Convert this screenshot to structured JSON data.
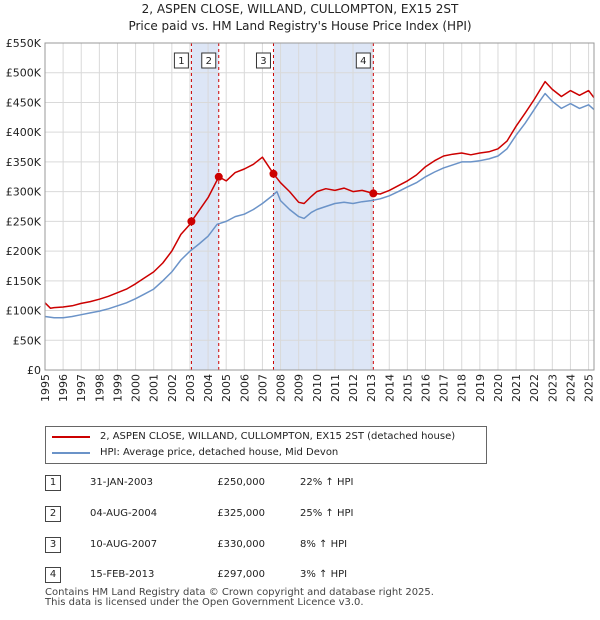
{
  "header": {
    "title": "2, ASPEN CLOSE, WILLAND, CULLOMPTON, EX15 2ST",
    "subtitle": "Price paid vs. HM Land Registry's House Price Index (HPI)"
  },
  "chart_data": {
    "type": "line",
    "xlim": [
      1995.0,
      2025.3
    ],
    "ylim": [
      0,
      550000
    ],
    "y_ticks": [
      0,
      50000,
      100000,
      150000,
      200000,
      250000,
      300000,
      350000,
      400000,
      450000,
      500000,
      550000
    ],
    "y_tick_labels": [
      "£0",
      "£50K",
      "£100K",
      "£150K",
      "£200K",
      "£250K",
      "£300K",
      "£350K",
      "£400K",
      "£450K",
      "£500K",
      "£550K"
    ],
    "x_ticks": [
      1995,
      1996,
      1997,
      1998,
      1999,
      2000,
      2001,
      2002,
      2003,
      2004,
      2005,
      2006,
      2007,
      2008,
      2009,
      2010,
      2011,
      2012,
      2013,
      2014,
      2015,
      2016,
      2017,
      2018,
      2019,
      2020,
      2021,
      2022,
      2023,
      2024,
      2025
    ],
    "x_tick_labels": [
      "1995",
      "1996",
      "1997",
      "1998",
      "1999",
      "2000",
      "2001",
      "2002",
      "2003",
      "2004",
      "2005",
      "2006",
      "2007",
      "2008",
      "2009",
      "2010",
      "2011",
      "2012",
      "2013",
      "2014",
      "2015",
      "2016",
      "2017",
      "2018",
      "2019",
      "2020",
      "2021",
      "2022",
      "2023",
      "2024",
      "2025"
    ],
    "grid": true,
    "series": [
      {
        "name": "2, ASPEN CLOSE, WILLAND, CULLOMPTON, EX15 2ST (detached house)",
        "color": "#cc0000",
        "x": [
          1995.0,
          1995.3,
          1995.5,
          1996.0,
          1996.5,
          1997.0,
          1997.5,
          1998.0,
          1998.5,
          1999.0,
          1999.5,
          2000.0,
          2000.5,
          2001.0,
          2001.5,
          2002.0,
          2002.5,
          2003.0,
          2003.08,
          2003.5,
          2004.0,
          2004.59,
          2005.0,
          2005.5,
          2006.0,
          2006.5,
          2007.0,
          2007.61,
          2008.0,
          2008.5,
          2009.0,
          2009.3,
          2009.7,
          2010.0,
          2010.5,
          2011.0,
          2011.5,
          2012.0,
          2012.5,
          2013.12,
          2013.5,
          2014.0,
          2014.5,
          2015.0,
          2015.5,
          2016.0,
          2016.5,
          2017.0,
          2017.5,
          2018.0,
          2018.5,
          2019.0,
          2019.5,
          2020.0,
          2020.5,
          2021.0,
          2021.5,
          2022.0,
          2022.3,
          2022.6,
          2023.0,
          2023.5,
          2024.0,
          2024.5,
          2025.0,
          2025.3
        ],
        "y": [
          113000,
          104000,
          105000,
          106000,
          108000,
          112000,
          115000,
          119000,
          124000,
          130000,
          136000,
          145000,
          155000,
          165000,
          180000,
          200000,
          228000,
          245000,
          250000,
          268000,
          290000,
          325000,
          318000,
          332000,
          338000,
          346000,
          358000,
          330000,
          315000,
          300000,
          282000,
          280000,
          292000,
          300000,
          305000,
          302000,
          306000,
          300000,
          302000,
          297000,
          296000,
          302000,
          310000,
          318000,
          328000,
          342000,
          352000,
          360000,
          363000,
          365000,
          362000,
          365000,
          367000,
          372000,
          385000,
          410000,
          432000,
          455000,
          470000,
          485000,
          472000,
          460000,
          470000,
          462000,
          470000,
          458000
        ]
      },
      {
        "name": "HPI: Average price, detached house, Mid Devon",
        "color": "#6b93c8",
        "x": [
          1995.0,
          1995.5,
          1996.0,
          1996.5,
          1997.0,
          1997.5,
          1998.0,
          1998.5,
          1999.0,
          1999.5,
          2000.0,
          2000.5,
          2001.0,
          2001.5,
          2002.0,
          2002.5,
          2003.0,
          2003.5,
          2004.0,
          2004.5,
          2005.0,
          2005.5,
          2006.0,
          2006.5,
          2007.0,
          2007.5,
          2007.8,
          2008.0,
          2008.5,
          2009.0,
          2009.3,
          2009.7,
          2010.0,
          2010.5,
          2011.0,
          2011.5,
          2012.0,
          2012.5,
          2013.0,
          2013.5,
          2014.0,
          2014.5,
          2015.0,
          2015.5,
          2016.0,
          2016.5,
          2017.0,
          2017.5,
          2018.0,
          2018.5,
          2019.0,
          2019.5,
          2020.0,
          2020.5,
          2021.0,
          2021.5,
          2022.0,
          2022.3,
          2022.6,
          2023.0,
          2023.5,
          2024.0,
          2024.5,
          2025.0,
          2025.3
        ],
        "y": [
          90000,
          88000,
          88000,
          90000,
          93000,
          96000,
          99000,
          103000,
          108000,
          113000,
          120000,
          128000,
          136000,
          150000,
          165000,
          185000,
          200000,
          212000,
          225000,
          245000,
          250000,
          258000,
          262000,
          270000,
          280000,
          292000,
          300000,
          285000,
          270000,
          258000,
          255000,
          265000,
          270000,
          275000,
          280000,
          282000,
          280000,
          283000,
          285000,
          288000,
          293000,
          300000,
          308000,
          315000,
          325000,
          333000,
          340000,
          345000,
          350000,
          350000,
          352000,
          355000,
          360000,
          372000,
          395000,
          415000,
          438000,
          452000,
          465000,
          452000,
          440000,
          448000,
          440000,
          446000,
          438000
        ]
      }
    ],
    "sales": [
      {
        "label": "1",
        "x": 2003.08,
        "y": 250000
      },
      {
        "label": "2",
        "x": 2004.59,
        "y": 325000
      },
      {
        "label": "3",
        "x": 2007.61,
        "y": 330000
      },
      {
        "label": "4",
        "x": 2013.12,
        "y": 297000
      }
    ],
    "shaded_ranges": [
      [
        2003.08,
        2004.59
      ],
      [
        2007.61,
        2013.12
      ]
    ]
  },
  "legend": {
    "items": [
      {
        "label": "2, ASPEN CLOSE, WILLAND, CULLOMPTON, EX15 2ST (detached house)",
        "color": "#cc0000"
      },
      {
        "label": "HPI: Average price, detached house, Mid Devon",
        "color": "#6b93c8"
      }
    ]
  },
  "table": {
    "rows": [
      {
        "num": "1",
        "date": "31-JAN-2003",
        "price": "£250,000",
        "hpi": "22% ↑ HPI"
      },
      {
        "num": "2",
        "date": "04-AUG-2004",
        "price": "£325,000",
        "hpi": "25% ↑ HPI"
      },
      {
        "num": "3",
        "date": "10-AUG-2007",
        "price": "£330,000",
        "hpi": "8% ↑ HPI"
      },
      {
        "num": "4",
        "date": "15-FEB-2013",
        "price": "£297,000",
        "hpi": "3% ↑ HPI"
      }
    ]
  },
  "footer": {
    "line1": "Contains HM Land Registry data © Crown copyright and database right 2025.",
    "line2": "This data is licensed under the Open Government Licence v3.0."
  }
}
